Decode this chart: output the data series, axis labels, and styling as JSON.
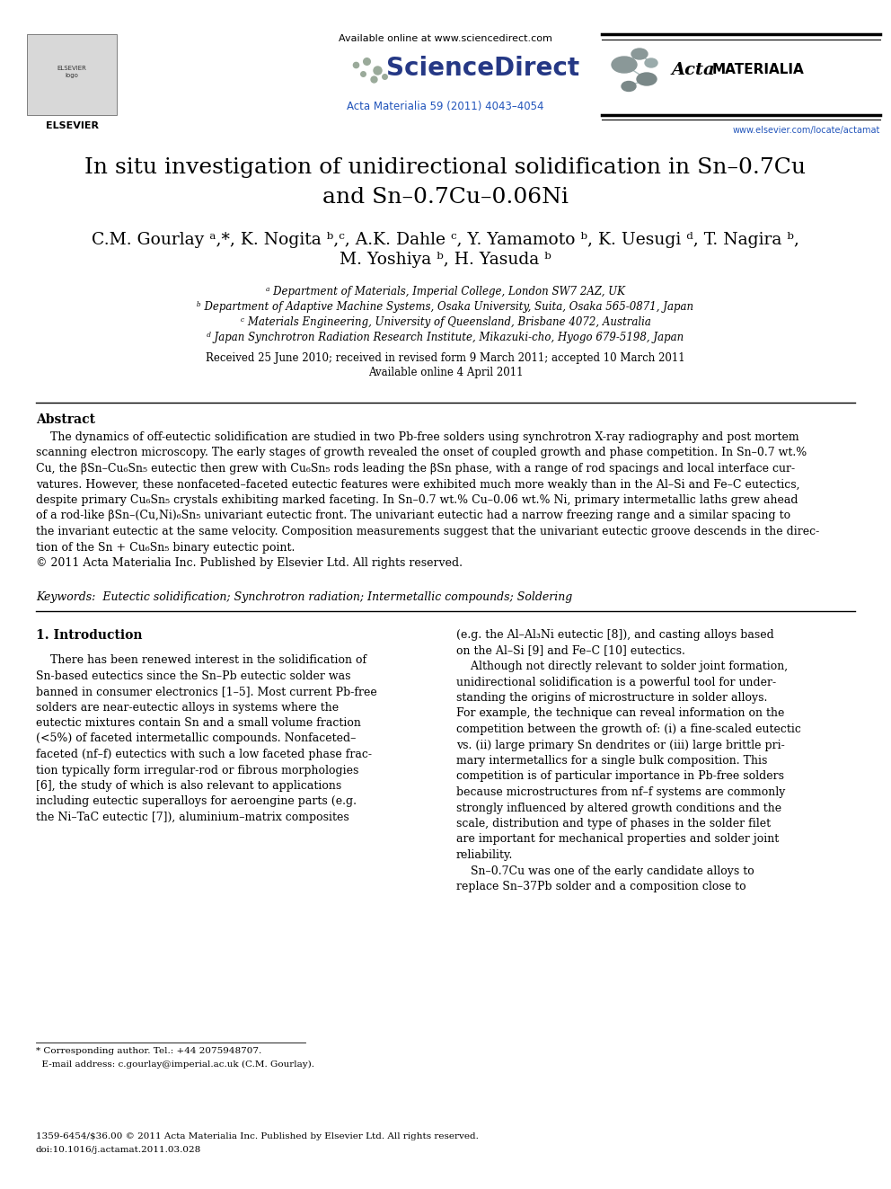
{
  "bg_color": "#ffffff",
  "link_color": "#2255bb",
  "header_url": "Available online at www.sciencedirect.com",
  "journal_ref": "Acta Materialia 59 (2011) 4043–4054",
  "elsevier_url": "www.elsevier.com/locate/actamat",
  "title_line1": "In situ investigation of unidirectional solidification in Sn–0.7Cu",
  "title_line2": "and Sn–0.7Cu–0.06Ni",
  "authors_line1": "C.M. Gourlay ᵃ,*, K. Nogita ᵇ,ᶜ, A.K. Dahle ᶜ, Y. Yamamoto ᵇ, K. Uesugi ᵈ, T. Nagira ᵇ,",
  "authors_line2": "M. Yoshiya ᵇ, H. Yasuda ᵇ",
  "affil_a": "ᵃ Department of Materials, Imperial College, London SW7 2AZ, UK",
  "affil_b": "ᵇ Department of Adaptive Machine Systems, Osaka University, Suita, Osaka 565-0871, Japan",
  "affil_c": "ᶜ Materials Engineering, University of Queensland, Brisbane 4072, Australia",
  "affil_d": "ᵈ Japan Synchrotron Radiation Research Institute, Mikazuki-cho, Hyogo 679-5198, Japan",
  "received": "Received 25 June 2010; received in revised form 9 March 2011; accepted 10 March 2011",
  "available": "Available online 4 April 2011",
  "abstract_title": "Abstract",
  "abstract_body": "    The dynamics of off-eutectic solidification are studied in two Pb-free solders using synchrotron X-ray radiography and post mortem\nscanning electron microscopy. The early stages of growth revealed the onset of coupled growth and phase competition. In Sn–0.7 wt.%\nCu, the βSn–Cu₆Sn₅ eutectic then grew with Cu₆Sn₅ rods leading the βSn phase, with a range of rod spacings and local interface cur-\nvatures. However, these nonfaceted–faceted eutectic features were exhibited much more weakly than in the Al–Si and Fe–C eutectics,\ndespite primary Cu₆Sn₅ crystals exhibiting marked faceting. In Sn–0.7 wt.% Cu–0.06 wt.% Ni, primary intermetallic laths grew ahead\nof a rod-like βSn–(Cu,Ni)₆Sn₅ univariant eutectic front. The univariant eutectic had a narrow freezing range and a similar spacing to\nthe invariant eutectic at the same velocity. Composition measurements suggest that the univariant eutectic groove descends in the direc-\ntion of the Sn + Cu₆Sn₅ binary eutectic point.\n© 2011 Acta Materialia Inc. Published by Elsevier Ltd. All rights reserved.",
  "keywords": "Keywords:  Eutectic solidification; Synchrotron radiation; Intermetallic compounds; Soldering",
  "section1": "1. Introduction",
  "intro_left": "    There has been renewed interest in the solidification of\nSn-based eutectics since the Sn–Pb eutectic solder was\nbanned in consumer electronics [1–5]. Most current Pb-free\nsolders are near-eutectic alloys in systems where the\neutectic mixtures contain Sn and a small volume fraction\n(<5%) of faceted intermetallic compounds. Nonfaceted–\nfaceted (nf–f) eutectics with such a low faceted phase frac-\ntion typically form irregular-rod or fibrous morphologies\n[6], the study of which is also relevant to applications\nincluding eutectic superalloys for aeroengine parts (e.g.\nthe Ni–TaC eutectic [7]), aluminium–matrix composites",
  "intro_right": "(e.g. the Al–Al₃Ni eutectic [8]), and casting alloys based\non the Al–Si [9] and Fe–C [10] eutectics.\n    Although not directly relevant to solder joint formation,\nunidirectional solidification is a powerful tool for under-\nstanding the origins of microstructure in solder alloys.\nFor example, the technique can reveal information on the\ncompetition between the growth of: (i) a fine-scaled eutectic\nvs. (ii) large primary Sn dendrites or (iii) large brittle pri-\nmary intermetallics for a single bulk composition. This\ncompetition is of particular importance in Pb-free solders\nbecause microstructures from nf–f systems are commonly\nstrongly influenced by altered growth conditions and the\nscale, distribution and type of phases in the solder filet\nare important for mechanical properties and solder joint\nreliability.\n    Sn–0.7Cu was one of the early candidate alloys to\nreplace Sn–37Pb solder and a composition close to",
  "footer_line1": "* Corresponding author. Tel.: +44 2075948707.",
  "footer_line2": "  E-mail address: c.gourlay@imperial.ac.uk (C.M. Gourlay).",
  "footer_copy1": "1359-6454/$36.00 © 2011 Acta Materialia Inc. Published by Elsevier Ltd. All rights reserved.",
  "footer_copy2": "doi:10.1016/j.actamat.2011.03.028"
}
